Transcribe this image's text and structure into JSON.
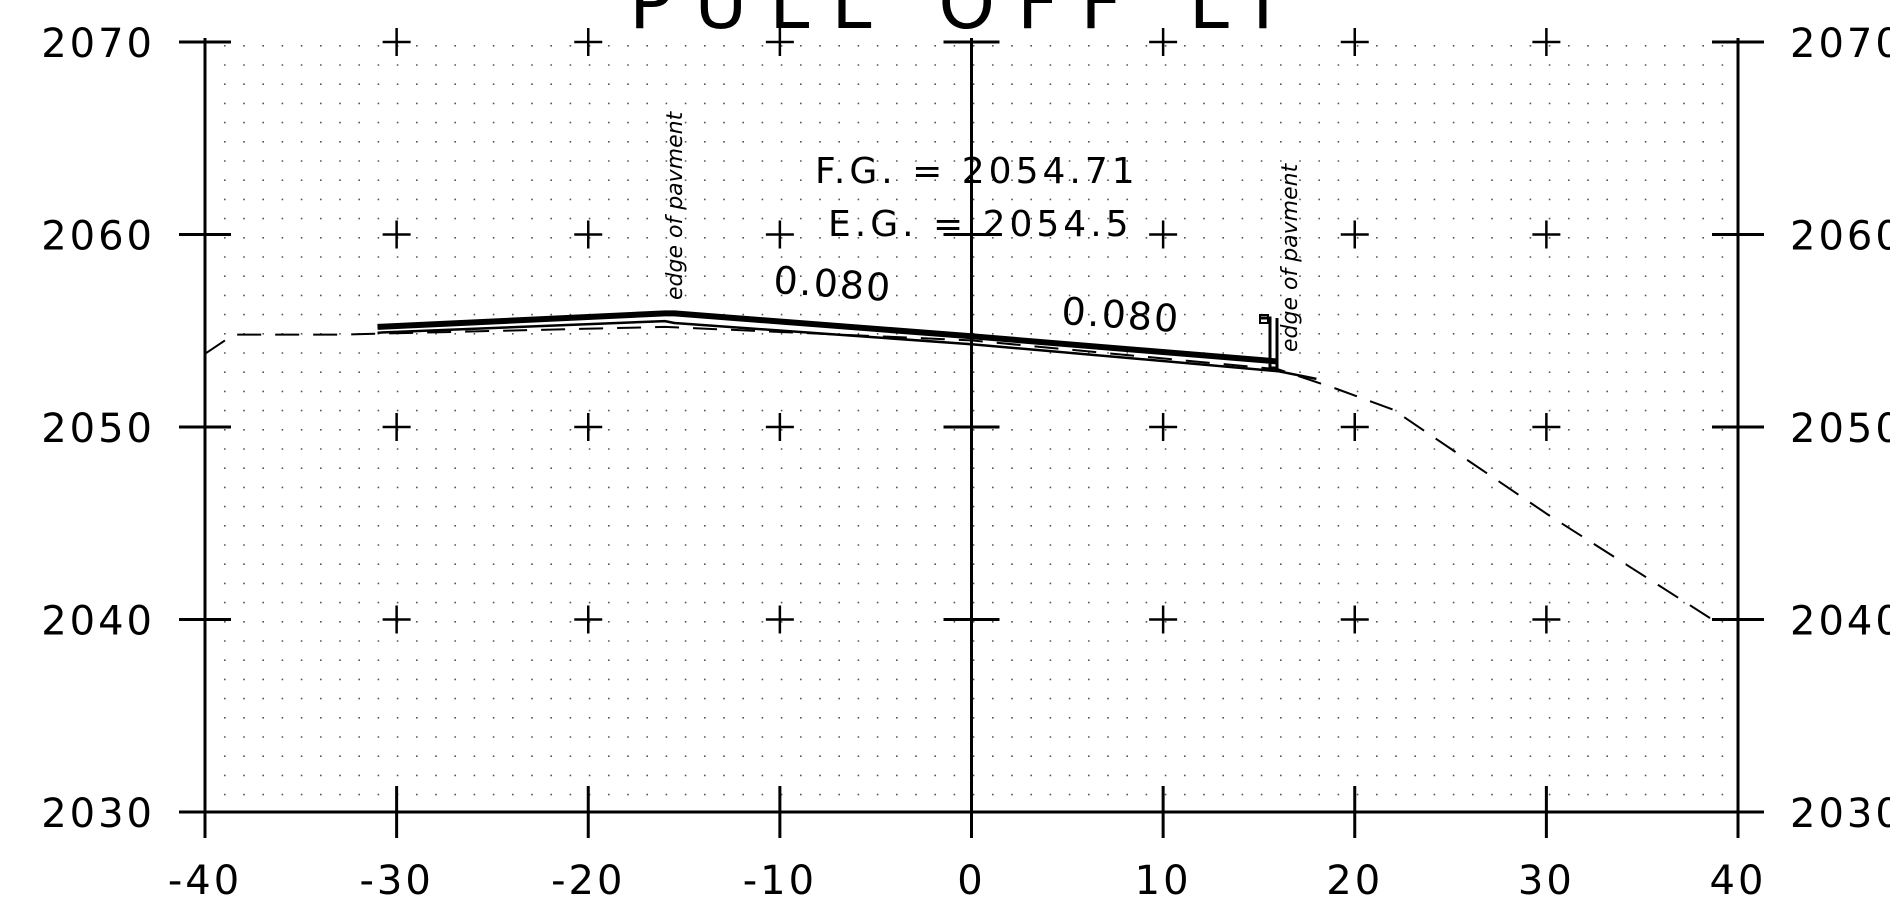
{
  "title": "PULL OFF LT",
  "annotations": {
    "fg": "F.G. = 2054.71",
    "eg": "E.G. = 2054.5",
    "slope_left": "0.080",
    "slope_right": "0.080",
    "edge_left": "edge of pavment",
    "edge_right": "edge of pavment"
  },
  "chart_data": {
    "type": "line",
    "title": "PULL OFF LT",
    "xlim": [
      -40,
      40
    ],
    "ylim": [
      2030,
      2070
    ],
    "x_ticks": [
      "-40",
      "-30",
      "-20",
      "-10",
      "0",
      "10",
      "20",
      "30",
      "40"
    ],
    "y_ticks": [
      "2030",
      "2040",
      "2050",
      "2060",
      "2070"
    ],
    "grid": "dotted",
    "series": [
      {
        "style": "solid-thick",
        "points": [
          [
            -31,
            2055.2
          ],
          [
            -16,
            2055.9
          ],
          [
            -15.5,
            2055.9
          ],
          [
            0,
            2054.71
          ],
          [
            16,
            2053.4
          ]
        ]
      },
      {
        "style": "solid-thin",
        "points": [
          [
            -31,
            2054.9
          ],
          [
            -16,
            2055.5
          ],
          [
            -15.5,
            2055.4
          ],
          [
            0,
            2054.3
          ],
          [
            16,
            2052.9
          ],
          [
            18,
            2052.5
          ]
        ]
      },
      {
        "style": "dashed",
        "points": [
          [
            -40,
            2053.8
          ],
          [
            -38.5,
            2054.8
          ],
          [
            -33,
            2054.8
          ],
          [
            -16,
            2055.2
          ],
          [
            0,
            2054.5
          ],
          [
            16,
            2053.0
          ],
          [
            19,
            2052.0
          ],
          [
            22,
            2050.9
          ],
          [
            30,
            2045.5
          ],
          [
            38.5,
            2040.1
          ],
          [
            39.5,
            2040
          ]
        ]
      }
    ]
  }
}
